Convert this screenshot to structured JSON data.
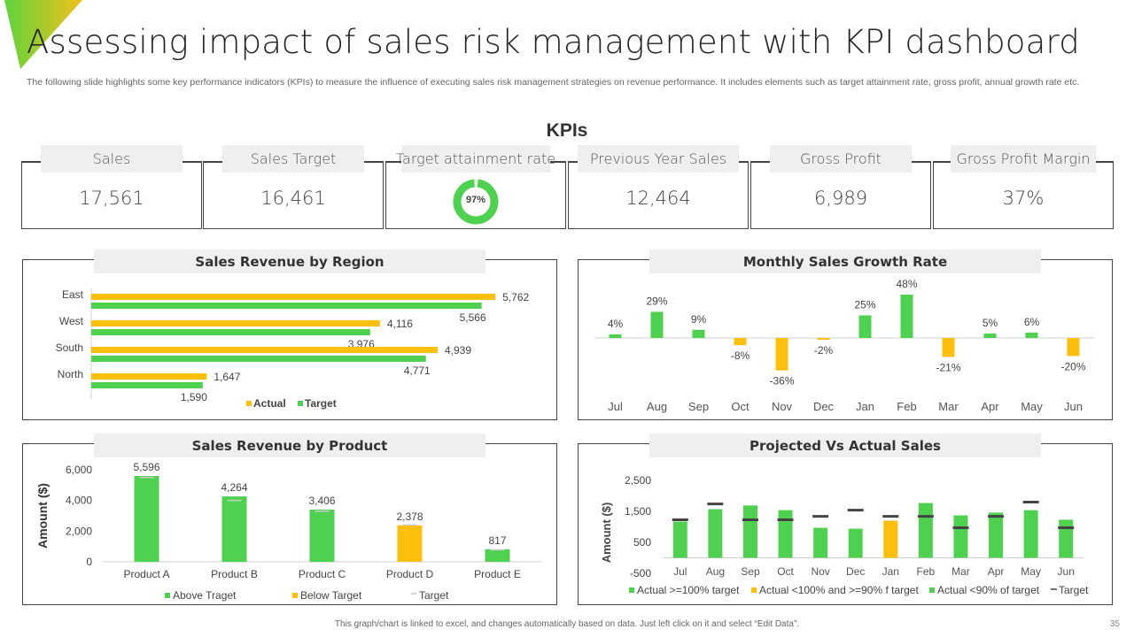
{
  "page": {
    "title": "Assessing impact of sales risk management with KPI dashboard",
    "subtitle": "The following slide highlights some key performance indicators (KPIs) to measure the influence of executing sales risk management strategies on revenue performance. It includes elements such as target attainment rate, gross profit, annual growth rate etc.",
    "footer_note": "This graph/chart is linked to excel, and changes automatically based on data. Just left click on it and select “Edit Data”.",
    "page_number": "35"
  },
  "colors": {
    "green": "#4fd150",
    "yellow": "#fcbf0b",
    "target_marker": "#444444",
    "gradient_start": "#5fd43c",
    "gradient_end": "#f2c01c"
  },
  "kpis": {
    "heading": "KPIs",
    "cards": [
      {
        "label": "Sales",
        "value": "17,561"
      },
      {
        "label": "Sales Target",
        "value": "16,461"
      },
      {
        "label": "Target attainment rate",
        "value": "97%",
        "percent": 97
      },
      {
        "label": "Previous Year Sales",
        "value": "12,464"
      },
      {
        "label": "Gross Profit",
        "value": "6,989"
      },
      {
        "label": "Gross Profit Margin",
        "value": "37%"
      }
    ]
  },
  "chart_data": [
    {
      "id": "region",
      "type": "bar",
      "orientation": "horizontal",
      "title": "Sales Revenue by Region",
      "categories": [
        "East",
        "West",
        "South",
        "North"
      ],
      "series": [
        {
          "name": "Actual",
          "color": "#fcbf0b",
          "values": [
            5762,
            4116,
            4939,
            1647
          ],
          "labels": [
            "5,762",
            "4,116",
            "4,939",
            "1,647"
          ]
        },
        {
          "name": "Target",
          "color": "#4fd150",
          "values": [
            5566,
            3976,
            4771,
            1590
          ],
          "labels": [
            "5,566",
            "3,976",
            "4,771",
            "1,590"
          ]
        }
      ],
      "xlim": [
        0,
        6000
      ],
      "legend": "bottom"
    },
    {
      "id": "growth",
      "type": "bar",
      "title": "Monthly Sales Growth Rate",
      "categories": [
        "Jul",
        "Aug",
        "Sep",
        "Oct",
        "Nov",
        "Dec",
        "Jan",
        "Feb",
        "Mar",
        "Apr",
        "May",
        "Jun"
      ],
      "values": [
        4,
        29,
        9,
        -8,
        -36,
        -2,
        25,
        48,
        -21,
        5,
        6,
        -20
      ],
      "labels": [
        "4%",
        "29%",
        "9%",
        "-8%",
        "-36%",
        "-2%",
        "25%",
        "48%",
        "-21%",
        "5%",
        "6%",
        "-20%"
      ],
      "unit": "%",
      "positive_color": "#4fd150",
      "negative_color": "#fcbf0b",
      "ylim": [
        -40,
        55
      ]
    },
    {
      "id": "product",
      "type": "bar",
      "title": "Sales Revenue by Product",
      "categories": [
        "Product A",
        "Product B",
        "Product C",
        "Product D",
        "Product E"
      ],
      "values": [
        5596,
        4264,
        3406,
        2378,
        817
      ],
      "labels": [
        "5,596",
        "4,264",
        "3,406",
        "2,378",
        "817"
      ],
      "targets": [
        5500,
        4000,
        3300,
        2400,
        780
      ],
      "status": [
        "above",
        "above",
        "above",
        "below",
        "above"
      ],
      "ylabel": "Amount ($)",
      "yticks": [
        0,
        2000,
        4000,
        6000
      ],
      "ytick_labels": [
        "0",
        "2,000",
        "4,000",
        "6,000"
      ],
      "ylim": [
        0,
        6000
      ],
      "legend": [
        {
          "name": "Above Traget",
          "kind": "square",
          "color": "#4fd150"
        },
        {
          "name": "Below Target",
          "kind": "square",
          "color": "#fcbf0b"
        },
        {
          "name": "Target",
          "kind": "dash",
          "color": "#aaaaaa"
        }
      ]
    },
    {
      "id": "projected",
      "type": "bar",
      "title": "Projected Vs Actual Sales",
      "categories": [
        "Jul",
        "Aug",
        "Sep",
        "Oct",
        "Nov",
        "Dec",
        "Jan",
        "Feb",
        "Mar",
        "Apr",
        "May",
        "Jun"
      ],
      "actual": [
        1170,
        1570,
        1690,
        1540,
        970,
        940,
        1200,
        1770,
        1370,
        1460,
        1540,
        1230
      ],
      "target": [
        1230,
        1740,
        1230,
        1230,
        1340,
        1540,
        1340,
        1340,
        970,
        1340,
        1800,
        970
      ],
      "status": [
        "ge100",
        "ge100",
        "ge100",
        "ge100",
        "lt90",
        "lt90",
        "ge90",
        "ge100",
        "ge100",
        "ge100",
        "lt90",
        "ge100"
      ],
      "ylabel": "Amount ($)",
      "yticks": [
        -500,
        500,
        1500,
        2500
      ],
      "ytick_labels": [
        "-500",
        "500",
        "1,500",
        "2,500"
      ],
      "ylim": [
        -500,
        2500
      ],
      "legend": [
        {
          "name": "Actual >=100% target",
          "kind": "square",
          "color": "#4fd150"
        },
        {
          "name": "Actual <100% and >=90% f target",
          "kind": "square",
          "color": "#fcbf0b"
        },
        {
          "name": "Actual <90% of target",
          "kind": "square",
          "color": "#4fd150"
        },
        {
          "name": "Target",
          "kind": "dash",
          "color": "#444444"
        }
      ]
    }
  ]
}
